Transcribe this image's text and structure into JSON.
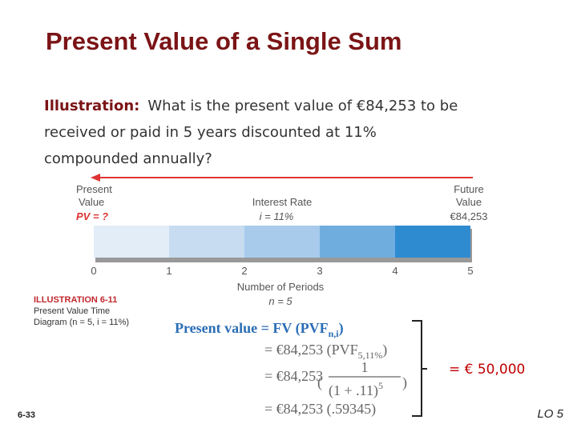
{
  "header": {
    "title": "Present Value of a Single Sum"
  },
  "illustration": {
    "label": "Illustration:",
    "lines": [
      "What is the present value of €84,253 to be",
      "received or paid in 5 years discounted at 11%",
      "compounded annually?"
    ]
  },
  "diagram": {
    "present": {
      "line1": "Present",
      "line2": "Value",
      "value": "PV = ?"
    },
    "rate": {
      "line1": "Interest Rate",
      "value": "i = 11%"
    },
    "future": {
      "line1": "Future",
      "line2": "Value",
      "value": "€84,253"
    },
    "periods": [
      0,
      1,
      2,
      3,
      4,
      5
    ],
    "axis_label": "Number of Periods",
    "n": "n = 5"
  },
  "caption": {
    "number": "ILLUSTRATION 6-11",
    "line1": "Present Value Time",
    "line2": "Diagram (n = 5, i = 11%)"
  },
  "formula": {
    "line0": {
      "text": "Present value = FV (PVF",
      "sub": "n,i",
      "close": ")"
    },
    "line1": {
      "text": "= €84,253 (PVF",
      "sub": "5,11%",
      "close": ")"
    },
    "line2": {
      "text": "= €84,253",
      "open": "(",
      "numerator": "1",
      "denominator": "(1 + .11)",
      "exponent": "5",
      "close": ")"
    },
    "line3": {
      "text": "= €84,253 (.59345)"
    },
    "result": "= € 50,000"
  },
  "footer": {
    "page": "6-33",
    "lo": "LO 5"
  }
}
